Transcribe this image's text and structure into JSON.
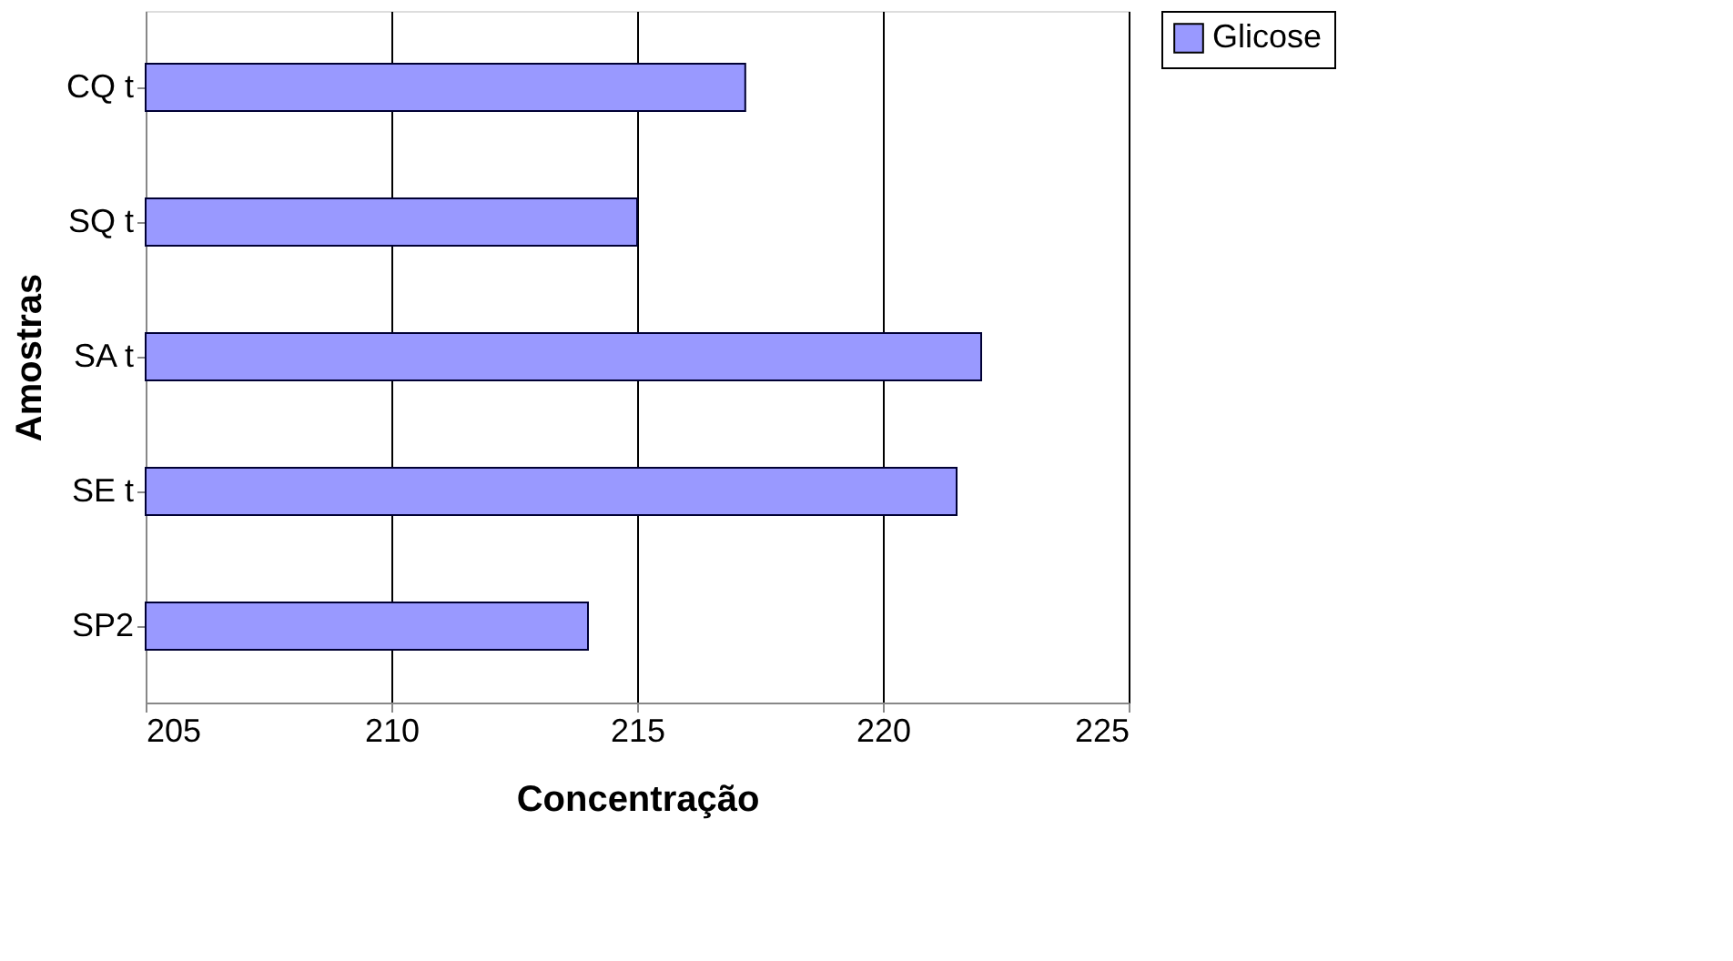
{
  "chart_data": {
    "type": "bar",
    "orientation": "horizontal",
    "xlabel": "Concentração",
    "ylabel": "Amostras",
    "categories": [
      "CQ t",
      "SQ t",
      "SA t",
      "SE t",
      "SP2"
    ],
    "series": [
      {
        "name": "Glicose",
        "color": "#9999ff",
        "values": [
          217.2,
          215,
          222,
          221.5,
          214
        ]
      }
    ],
    "xlim": [
      205,
      225
    ],
    "xticks": [
      205,
      210,
      215,
      220,
      225
    ],
    "grid": "x",
    "legend": "right"
  }
}
